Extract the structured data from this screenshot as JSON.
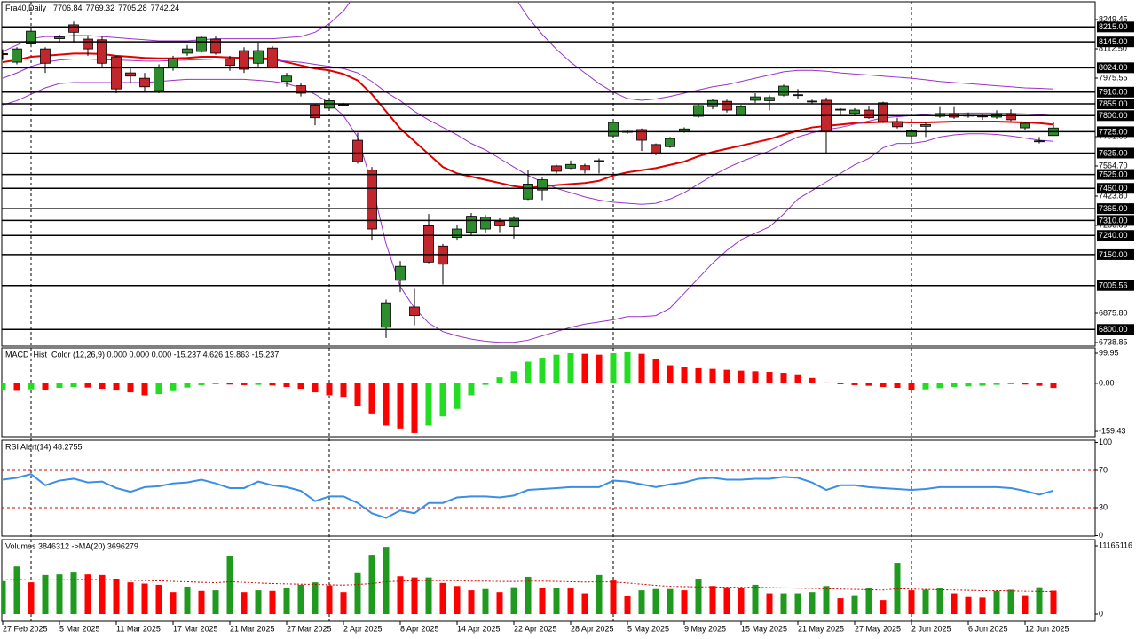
{
  "chart_data": [
    {
      "type": "candlestick",
      "title": "Fra40,Daily",
      "categories": [
        "27 Feb 2025",
        null,
        null,
        null,
        "5 Mar 2025",
        null,
        null,
        null,
        "11 Mar 2025",
        null,
        null,
        null,
        "17 Mar 2025",
        null,
        null,
        null,
        "21 Mar 2025",
        null,
        null,
        null,
        "27 Mar 2025",
        null,
        null,
        null,
        "2 Apr 2025",
        null,
        null,
        null,
        "8 Apr 2025",
        null,
        null,
        null,
        "14 Apr 2025",
        null,
        null,
        null,
        "22 Apr 2025",
        null,
        null,
        null,
        "28 Apr 2025",
        null,
        null,
        null,
        "5 May 2025",
        null,
        null,
        null,
        "9 May 2025",
        null,
        null,
        null,
        "15 May 2025",
        null,
        null,
        null,
        "21 May 2025",
        null,
        null,
        null,
        "27 May 2025",
        null,
        null,
        null,
        "2 Jun 2025",
        null,
        null,
        null,
        "6 Jun 2025",
        null,
        null,
        null,
        "12 Jun 2025",
        null,
        null
      ],
      "open": [
        8090,
        8050,
        8135,
        8112,
        8160,
        8225,
        8158,
        8155,
        8075,
        8000,
        7975,
        7917,
        8025,
        8092,
        8100,
        8158,
        8066,
        8104,
        8045,
        8116,
        7960,
        7940,
        7850,
        7835,
        7852,
        7685,
        7545,
        6810,
        7030,
        6905,
        7285,
        7190,
        7230,
        7255,
        7270,
        7305,
        7280,
        7410,
        7452,
        7565,
        7555,
        7566,
        7590,
        7705,
        7722,
        7735,
        7665,
        7655,
        7726,
        7797,
        7842,
        7867,
        7800,
        7872,
        7870,
        7896,
        7898,
        7868,
        7872,
        7830,
        7810,
        7826,
        7860,
        7772,
        7705,
        7750,
        7797,
        7810,
        7802,
        7798,
        7793,
        7810,
        7743,
        7682,
        7706.84
      ],
      "high": [
        8110,
        8120,
        8215,
        8120,
        8180,
        8240,
        8175,
        8170,
        8080,
        8020,
        8000,
        8040,
        8080,
        8130,
        8175,
        8170,
        8080,
        8120,
        8140,
        8125,
        8000,
        7955,
        7855,
        7880,
        7860,
        7720,
        7560,
        6940,
        7120,
        6990,
        7340,
        7200,
        7290,
        7345,
        7335,
        7320,
        7330,
        7545,
        7510,
        7570,
        7590,
        7575,
        7600,
        7775,
        7735,
        7740,
        7670,
        7700,
        7745,
        7855,
        7880,
        7875,
        7850,
        7905,
        7895,
        7945,
        7925,
        7875,
        7885,
        7835,
        7835,
        7845,
        7865,
        7790,
        7740,
        7770,
        7840,
        7840,
        7815,
        7810,
        7825,
        7830,
        7770,
        7700,
        7769.32
      ],
      "low": [
        8060,
        8040,
        8120,
        8000,
        8140,
        8140,
        8080,
        8030,
        7905,
        7950,
        7910,
        7905,
        8010,
        8080,
        8095,
        8085,
        8010,
        8000,
        8030,
        8020,
        7935,
        7890,
        7755,
        7825,
        7845,
        7575,
        7220,
        6760,
        6975,
        6820,
        7110,
        7010,
        7220,
        7240,
        7250,
        7255,
        7225,
        7405,
        7405,
        7530,
        7550,
        7530,
        7530,
        7700,
        7715,
        7635,
        7615,
        7650,
        7720,
        7790,
        7830,
        7815,
        7800,
        7860,
        7825,
        7890,
        7880,
        7855,
        7620,
        7800,
        7800,
        7785,
        7765,
        7740,
        7685,
        7700,
        7790,
        7785,
        7790,
        7780,
        7785,
        7775,
        7735,
        7670,
        7705.28
      ],
      "close": [
        8085,
        8112,
        8195,
        8045,
        8168,
        8190,
        8112,
        8045,
        7925,
        7985,
        7935,
        8025,
        8066,
        8112,
        8166,
        8092,
        8035,
        8017,
        8104,
        8025,
        7985,
        7905,
        7790,
        7870,
        7850,
        7585,
        7270,
        6925,
        7095,
        6865,
        7115,
        7105,
        7270,
        7330,
        7325,
        7285,
        7320,
        7480,
        7500,
        7540,
        7572,
        7545,
        7590,
        7768,
        7727,
        7685,
        7625,
        7693,
        7738,
        7847,
        7871,
        7826,
        7842,
        7888,
        7885,
        7938,
        7896,
        7866,
        7727,
        7826,
        7826,
        7790,
        7772,
        7748,
        7730,
        7758,
        7810,
        7793,
        7800,
        7796,
        7806,
        7781,
        7764,
        7680,
        7742.24
      ],
      "up_color": "#2e8b2e",
      "down_color": "#c1272d",
      "overlays": [
        {
          "color": "#e00000",
          "width": 2,
          "values": [
            8050,
            8060,
            8075,
            8080,
            8085,
            8090,
            8090,
            8088,
            8080,
            8075,
            8070,
            8068,
            8068,
            8070,
            8075,
            8075,
            8072,
            8070,
            8070,
            8065,
            8050,
            8035,
            8020,
            8012,
            7995,
            7965,
            7900,
            7820,
            7740,
            7680,
            7620,
            7560,
            7530,
            7515,
            7500,
            7485,
            7470,
            7462,
            7468,
            7475,
            7480,
            7485,
            7495,
            7520,
            7535,
            7545,
            7555,
            7570,
            7585,
            7610,
            7630,
            7645,
            7660,
            7675,
            7690,
            7710,
            7730,
            7745,
            7752,
            7758,
            7765,
            7768,
            7770,
            7770,
            7768,
            7768,
            7770,
            7772,
            7772,
            7772,
            7772,
            7770,
            7768,
            7765,
            7758
          ]
        },
        {
          "color": "#9932cc",
          "width": 1,
          "values": [
            8100,
            8130,
            8160,
            8170,
            8170,
            8175,
            8175,
            8170,
            8165,
            8160,
            8155,
            8150,
            8150,
            8150,
            8155,
            8160,
            8160,
            8160,
            8160,
            8160,
            8165,
            8170,
            8190,
            8230,
            8290,
            8380,
            8520,
            8650,
            8720,
            8750,
            8760,
            8740,
            8700,
            8640,
            8560,
            8460,
            8360,
            8260,
            8180,
            8110,
            8050,
            8000,
            7950,
            7910,
            7880,
            7872,
            7878,
            7890,
            7905,
            7920,
            7935,
            7945,
            7960,
            7975,
            7990,
            8005,
            8012,
            8012,
            8008,
            8000,
            7995,
            7990,
            7985,
            7980,
            7975,
            7968,
            7960,
            7955,
            7950,
            7945,
            7940,
            7935,
            7930,
            7928,
            7925
          ]
        },
        {
          "color": "#9932cc",
          "width": 1,
          "values": [
            7975,
            8000,
            8030,
            8050,
            8060,
            8065,
            8065,
            8062,
            8060,
            8058,
            8055,
            8055,
            8058,
            8060,
            8062,
            8065,
            8065,
            8065,
            8062,
            8060,
            8055,
            8050,
            8040,
            8030,
            8020,
            8000,
            7960,
            7910,
            7870,
            7820,
            7780,
            7745,
            7710,
            7670,
            7640,
            7600,
            7560,
            7520,
            7490,
            7460,
            7440,
            7420,
            7405,
            7395,
            7390,
            7385,
            7390,
            7410,
            7440,
            7480,
            7520,
            7555,
            7585,
            7610,
            7635,
            7670,
            7700,
            7720,
            7735,
            7745,
            7760,
            7775,
            7790,
            7795,
            7800,
            7805,
            7810,
            7810,
            7812,
            7812,
            7812,
            7810,
            7808,
            7805,
            7800
          ]
        },
        {
          "color": "#9932cc",
          "width": 1,
          "values": [
            7850,
            7870,
            7900,
            7930,
            7950,
            7955,
            7955,
            7955,
            7955,
            7955,
            7955,
            7960,
            7965,
            7970,
            7970,
            7970,
            7970,
            7970,
            7965,
            7960,
            7950,
            7930,
            7900,
            7860,
            7800,
            7700,
            7480,
            7200,
            7000,
            6900,
            6830,
            6790,
            6770,
            6755,
            6745,
            6740,
            6740,
            6750,
            6770,
            6790,
            6810,
            6825,
            6835,
            6845,
            6860,
            6860,
            6865,
            6900,
            6970,
            7040,
            7110,
            7170,
            7220,
            7250,
            7280,
            7340,
            7410,
            7450,
            7490,
            7530,
            7570,
            7600,
            7650,
            7670,
            7670,
            7680,
            7700,
            7710,
            7715,
            7715,
            7712,
            7705,
            7695,
            7685,
            7680
          ]
        }
      ],
      "levels": [
        {
          "value": 8215,
          "label": "8215.00"
        },
        {
          "value": 8145,
          "label": "8145.00"
        },
        {
          "value": 8024,
          "label": "8024.00"
        },
        {
          "value": 7910,
          "label": "7910.00"
        },
        {
          "value": 7855,
          "label": "7855.00"
        },
        {
          "value": 7800,
          "label": "7800.00"
        },
        {
          "value": 7725,
          "label": "7725.00"
        },
        {
          "value": 7625,
          "label": "7625.00"
        },
        {
          "value": 7525,
          "label": "7525.00"
        },
        {
          "value": 7460,
          "label": "7460.00"
        },
        {
          "value": 7365,
          "label": "7365.00"
        },
        {
          "value": 7310,
          "label": "7310.00"
        },
        {
          "value": 7240,
          "label": "7240.00"
        },
        {
          "value": 7150,
          "label": "7150.00"
        },
        {
          "value": 7005.56,
          "label": "7005.56"
        },
        {
          "value": 6800,
          "label": "6800.00"
        }
      ],
      "ylim": [
        6722.25,
        8332.5
      ],
      "yticks": [
        8249.45,
        {
          "value": 8112.5,
          "label": "8112.50"
        },
        7975.55,
        7701.65,
        {
          "value": 7564.7,
          "label": "7564.70"
        },
        {
          "value": 7423.8,
          "label": "7423.80"
        },
        {
          "value": 7286.8,
          "label": "7286.80"
        },
        {
          "value": 6875.8,
          "label": "6875.80"
        },
        6738.85
      ]
    },
    {
      "type": "bar",
      "title": "MACD_Hist_Color (12,26,9) 0.000 0.000 0.000 -15.237 4.626 19.863 -15.237",
      "values": [
        -22,
        -25,
        -20,
        -22,
        -15,
        -12,
        -14,
        -18,
        -24,
        -30,
        -40,
        -36,
        -26,
        -14,
        -6,
        -3,
        -4,
        -6,
        -5,
        -7,
        -12,
        -18,
        -30,
        -40,
        -45,
        -75,
        -100,
        -140,
        -150,
        -165,
        -140,
        -110,
        -85,
        -40,
        -5,
        20,
        40,
        72,
        85,
        95,
        100,
        98,
        95,
        100,
        103,
        98,
        80,
        60,
        55,
        50,
        48,
        45,
        42,
        40,
        38,
        35,
        30,
        18,
        3,
        -3,
        -6,
        -8,
        -12,
        -15,
        -22,
        -20,
        -16,
        -12,
        -10,
        -8,
        -5,
        -3,
        -4,
        -8,
        -15.237
      ],
      "up_color": "#22dd22",
      "down_color": "#ff0000",
      "ylim": [
        -177,
        117.6
      ],
      "yticks": [
        99.95,
        {
          "value": 0,
          "label": "0.00"
        },
        -159.43
      ]
    },
    {
      "type": "line",
      "title": "RSI Alert(14) 48.2755",
      "values": [
        60,
        62,
        66,
        54,
        59,
        61,
        57,
        58,
        51,
        47,
        52,
        53,
        56,
        57,
        60,
        56,
        51,
        51,
        58,
        54,
        52,
        48,
        37,
        42,
        42,
        35,
        24,
        19,
        27,
        24,
        35,
        35,
        41,
        42,
        42,
        41,
        43,
        49,
        50,
        51,
        52,
        52,
        52,
        59,
        58,
        55,
        52,
        55,
        57,
        61,
        62,
        60,
        60,
        61,
        61,
        63,
        62,
        57,
        49,
        54,
        54,
        52,
        51,
        50,
        49,
        50,
        52,
        52,
        52,
        52,
        52,
        51,
        48,
        44,
        48.2755
      ],
      "color": "#3a8ee6",
      "levels": [
        70,
        30
      ],
      "level_color": "#d00000",
      "ylim": [
        -0.5,
        102.4
      ],
      "yticks": [
        100,
        70,
        30,
        0
      ]
    },
    {
      "type": "bar",
      "title": "Volumes 3846312 ->MA(20) 3696279",
      "values": [
        5400000,
        7800000,
        5200000,
        6400000,
        6500000,
        6800000,
        6500000,
        6400000,
        5800000,
        5200000,
        5000000,
        4800000,
        3600000,
        4500000,
        3800000,
        3900000,
        9500000,
        3600000,
        3900000,
        3800000,
        4300000,
        4800000,
        5200000,
        4700000,
        3600000,
        6700000,
        9700000,
        11000000,
        6200000,
        6000000,
        6000000,
        5100000,
        4600000,
        3900000,
        4100000,
        3600000,
        4400000,
        6100000,
        4300000,
        4300000,
        4200000,
        3400000,
        6400000,
        5500000,
        3000000,
        3900000,
        4100000,
        4100000,
        3900000,
        5800000,
        4600000,
        4400000,
        4300000,
        4800000,
        3400000,
        3400000,
        3400000,
        3600000,
        4600000,
        2600000,
        3100000,
        4200000,
        2300000,
        8400000,
        3900000,
        4000000,
        4200000,
        3400000,
        2800000,
        2700000,
        3800000,
        4000000,
        3100000,
        4400000,
        3846312
      ],
      "up_color": "#1f9a1f",
      "down_color": "#ff0000",
      "ma": {
        "color": "#d00000",
        "values": [
          5600000,
          5650000,
          5600000,
          5600000,
          5600000,
          5650000,
          5650000,
          5650000,
          5600000,
          5550000,
          5500000,
          5450000,
          5350000,
          5300000,
          5200000,
          5150000,
          5300000,
          5200000,
          5100000,
          5000000,
          4950000,
          4900000,
          4850000,
          4800000,
          4750000,
          4850000,
          5000000,
          5300000,
          5400000,
          5450000,
          5500000,
          5500000,
          5450000,
          5400000,
          5400000,
          5350000,
          5350000,
          5400000,
          5400000,
          5350000,
          5300000,
          5250000,
          5300000,
          5250000,
          5100000,
          4900000,
          4700000,
          4550000,
          4500000,
          4450000,
          4450000,
          4400000,
          4400000,
          4400000,
          4350000,
          4300000,
          4250000,
          4200000,
          4150000,
          4100000,
          4050000,
          4000000,
          3950000,
          4150000,
          4100000,
          4050000,
          4000000,
          3950000,
          3900000,
          3850000,
          3850000,
          3800000,
          3750000,
          3720000,
          3696279
        ]
      },
      "ylim": [
        -1160000,
        12180000
      ],
      "yticks": [
        11165116,
        0
      ]
    }
  ]
}
